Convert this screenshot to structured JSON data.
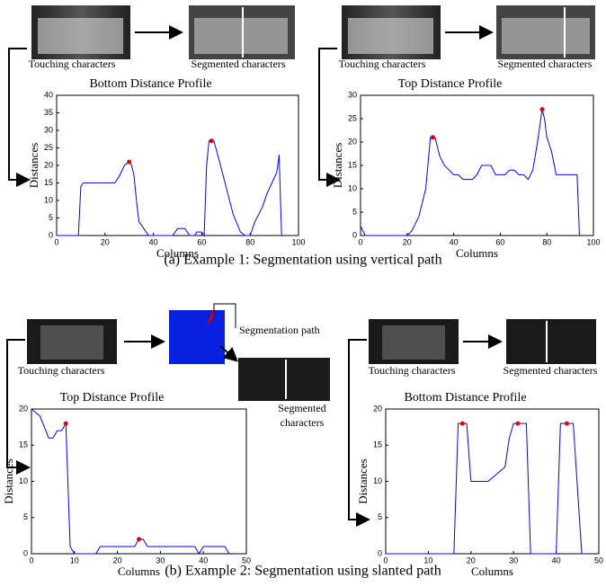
{
  "chart_data": [
    {
      "type": "line",
      "title": "Bottom Distance Profile",
      "xlabel": "Columns",
      "ylabel": "Distances",
      "x": [
        0,
        9,
        10,
        11,
        24,
        26,
        28,
        30,
        31,
        32,
        33,
        34,
        36,
        38,
        48,
        50,
        53,
        55,
        57,
        58,
        60,
        61,
        62,
        63,
        65,
        67,
        70,
        73,
        76,
        78,
        80,
        82,
        85,
        87,
        89,
        91,
        92,
        93
      ],
      "values": [
        0,
        0,
        14,
        15,
        15,
        17,
        20,
        21,
        20,
        17,
        10,
        4,
        2,
        0,
        0,
        2,
        2,
        0,
        0,
        1,
        1,
        0,
        20,
        27,
        27,
        22,
        14,
        6,
        1,
        0,
        0,
        4,
        8,
        12,
        15,
        18,
        23,
        0
      ],
      "color": "#0000ff",
      "highlight_x": [
        30,
        64
      ],
      "highlight_y": [
        21,
        27
      ],
      "highlight_color": "#e00000",
      "xlim": [
        0,
        100
      ],
      "ylim": [
        0,
        40
      ],
      "xticks": [
        0,
        20,
        40,
        60,
        80,
        100
      ],
      "yticks": [
        0,
        5,
        10,
        15,
        20,
        25,
        30,
        35,
        40
      ]
    },
    {
      "type": "line",
      "title": "Top Distance Profile",
      "xlabel": "Columns",
      "ylabel": "Distances",
      "x": [
        0,
        2,
        20,
        22,
        25,
        28,
        30,
        32,
        34,
        36,
        38,
        40,
        42,
        44,
        48,
        50,
        52,
        56,
        58,
        62,
        64,
        66,
        68,
        70,
        72,
        74,
        76,
        78,
        79,
        80,
        82,
        84,
        93,
        94
      ],
      "values": [
        2,
        0,
        0,
        1,
        4,
        10,
        21,
        21,
        17,
        15,
        14,
        13,
        13,
        12,
        12,
        13,
        15,
        15,
        13,
        13,
        14,
        14,
        13,
        13,
        12,
        14,
        20,
        27,
        25,
        21,
        18,
        13,
        13,
        0
      ],
      "color": "#0000ff",
      "highlight_x": [
        31,
        78
      ],
      "highlight_y": [
        21,
        27
      ],
      "highlight_color": "#e00000",
      "xlim": [
        0,
        100
      ],
      "ylim": [
        0,
        30
      ],
      "xticks": [
        0,
        20,
        40,
        60,
        80,
        100
      ],
      "yticks": [
        0,
        5,
        10,
        15,
        20,
        25,
        30
      ]
    },
    {
      "type": "line",
      "title": "Top Distance Profile",
      "xlabel": "Columns",
      "ylabel": "Distances",
      "x": [
        0,
        2,
        4,
        5,
        6,
        7,
        8,
        9,
        10,
        15,
        16,
        24,
        25,
        26,
        27,
        38,
        39,
        40,
        45,
        46
      ],
      "values": [
        20,
        19,
        16,
        16,
        17,
        17,
        18,
        1,
        0,
        0,
        1,
        1,
        2,
        2,
        1,
        1,
        0,
        1,
        1,
        0
      ],
      "color": "#0000ff",
      "highlight_x": [
        8,
        25
      ],
      "highlight_y": [
        18,
        2
      ],
      "highlight_color": "#e00000",
      "xlim": [
        0,
        50
      ],
      "ylim": [
        0,
        20
      ],
      "xticks": [
        0,
        10,
        20,
        30,
        40,
        50
      ],
      "yticks": [
        0,
        5,
        10,
        15,
        20
      ]
    },
    {
      "type": "line",
      "title": "Bottom Distance Profile",
      "xlabel": "Columns",
      "ylabel": "Distances",
      "x": [
        0,
        16,
        17,
        19,
        20,
        24,
        26,
        28,
        29,
        30,
        32,
        33,
        34,
        40,
        41,
        44,
        46,
        47
      ],
      "values": [
        0,
        0,
        18,
        18,
        10,
        10,
        11,
        12,
        16,
        18,
        18,
        18,
        0,
        0,
        18,
        18,
        0,
        0
      ],
      "color": "#0000ff",
      "highlight_x": [
        18,
        31,
        42.5
      ],
      "highlight_y": [
        18,
        18,
        18
      ],
      "highlight_color": "#e00000",
      "xlim": [
        0,
        50
      ],
      "ylim": [
        0,
        20
      ],
      "xticks": [
        0,
        10,
        20,
        30,
        40,
        50
      ],
      "yticks": [
        0,
        5,
        10,
        15,
        20
      ]
    }
  ],
  "annotations": [
    "Touching characters",
    "Segmented characters",
    "Touching characters",
    "Segmented characters",
    "Touching characters",
    "Segmentation path",
    "Segmented",
    "characters",
    "Touching characters",
    "Segmented characters"
  ],
  "captions": [
    "(a) Example 1: Segmentation using vertical path",
    "(b) Example 2: Segmentation using slanted path"
  ]
}
